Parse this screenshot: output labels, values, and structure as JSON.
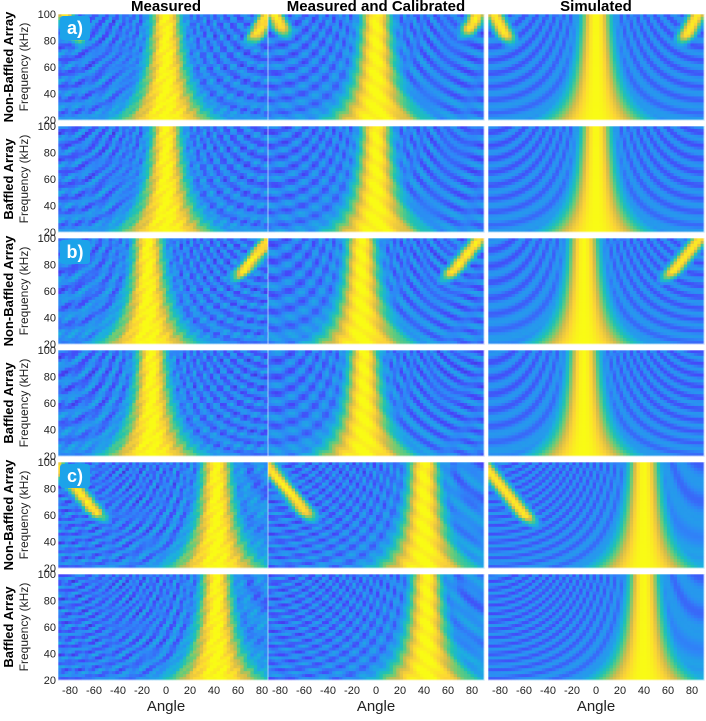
{
  "column_titles": [
    "Measured",
    "Measured and Calibrated",
    "Simulated"
  ],
  "group_labels": [
    "a)",
    "b)",
    "c)"
  ],
  "row_labels": [
    "Non-Baffled Array",
    "Baffled Array",
    "Non-Baffled Array",
    "Baffled Array",
    "Non-Baffled Array",
    "Baffled Array"
  ],
  "ylabel": "Frequency (kHz)",
  "xlabel": "Angle",
  "yticks": [
    100,
    80,
    60,
    40,
    20
  ],
  "xticks": [
    -80,
    -60,
    -40,
    -20,
    0,
    20,
    40,
    60,
    80
  ],
  "colors": {
    "colormap": [
      "#3e26a8",
      "#4743f9",
      "#2e87f7",
      "#1cafdf",
      "#21c3af",
      "#6ecc74",
      "#d3bb4c",
      "#fcd436",
      "#f9fb15"
    ],
    "label_background": "#1ca3ea"
  },
  "chart_data": {
    "type": "heatmap",
    "title": "",
    "xlabel": "Angle",
    "ylabel": "Frequency (kHz)",
    "xlim": [
      -90,
      90
    ],
    "ylim": [
      20,
      100
    ],
    "grid": false,
    "panels": [
      {
        "group": "a)",
        "array": "Non-Baffled Array",
        "column": "Measured",
        "main_lobe_angle_deg": 0,
        "grating_lobe_angle_deg": null,
        "grating_lobe_min_freq_khz": 80
      },
      {
        "group": "a)",
        "array": "Non-Baffled Array",
        "column": "Measured and Calibrated",
        "main_lobe_angle_deg": 0,
        "grating_lobe_angle_deg": null,
        "grating_lobe_min_freq_khz": 85
      },
      {
        "group": "a)",
        "array": "Non-Baffled Array",
        "column": "Simulated",
        "main_lobe_angle_deg": 0,
        "grating_lobe_angle_deg": null,
        "grating_lobe_min_freq_khz": 80
      },
      {
        "group": "a)",
        "array": "Baffled Array",
        "column": "Measured",
        "main_lobe_angle_deg": 0,
        "grating_lobe_angle_deg": null,
        "grating_lobe_min_freq_khz": null
      },
      {
        "group": "a)",
        "array": "Baffled Array",
        "column": "Measured and Calibrated",
        "main_lobe_angle_deg": 0,
        "grating_lobe_angle_deg": null,
        "grating_lobe_min_freq_khz": null
      },
      {
        "group": "a)",
        "array": "Baffled Array",
        "column": "Simulated",
        "main_lobe_angle_deg": 0,
        "grating_lobe_angle_deg": null,
        "grating_lobe_min_freq_khz": null
      },
      {
        "group": "b)",
        "array": "Non-Baffled Array",
        "column": "Measured",
        "main_lobe_angle_deg": -15,
        "grating_lobe_angle_deg": 60,
        "grating_lobe_min_freq_khz": 70
      },
      {
        "group": "b)",
        "array": "Non-Baffled Array",
        "column": "Measured and Calibrated",
        "main_lobe_angle_deg": -12,
        "grating_lobe_angle_deg": 60,
        "grating_lobe_min_freq_khz": 70
      },
      {
        "group": "b)",
        "array": "Non-Baffled Array",
        "column": "Simulated",
        "main_lobe_angle_deg": -10,
        "grating_lobe_angle_deg": 60,
        "grating_lobe_min_freq_khz": 70
      },
      {
        "group": "b)",
        "array": "Baffled Array",
        "column": "Measured",
        "main_lobe_angle_deg": -12,
        "grating_lobe_angle_deg": null,
        "grating_lobe_min_freq_khz": null
      },
      {
        "group": "b)",
        "array": "Baffled Array",
        "column": "Measured and Calibrated",
        "main_lobe_angle_deg": -10,
        "grating_lobe_angle_deg": null,
        "grating_lobe_min_freq_khz": null
      },
      {
        "group": "b)",
        "array": "Baffled Array",
        "column": "Simulated",
        "main_lobe_angle_deg": -10,
        "grating_lobe_angle_deg": null,
        "grating_lobe_min_freq_khz": null
      },
      {
        "group": "c)",
        "array": "Non-Baffled Array",
        "column": "Measured",
        "main_lobe_angle_deg": 42,
        "grating_lobe_angle_deg": -55,
        "grating_lobe_min_freq_khz": 58
      },
      {
        "group": "c)",
        "array": "Non-Baffled Array",
        "column": "Measured and Calibrated",
        "main_lobe_angle_deg": 40,
        "grating_lobe_angle_deg": -55,
        "grating_lobe_min_freq_khz": 58
      },
      {
        "group": "c)",
        "array": "Non-Baffled Array",
        "column": "Simulated",
        "main_lobe_angle_deg": 40,
        "grating_lobe_angle_deg": -55,
        "grating_lobe_min_freq_khz": 55
      },
      {
        "group": "c)",
        "array": "Baffled Array",
        "column": "Measured",
        "main_lobe_angle_deg": 42,
        "grating_lobe_angle_deg": null,
        "grating_lobe_min_freq_khz": null
      },
      {
        "group": "c)",
        "array": "Baffled Array",
        "column": "Measured and Calibrated",
        "main_lobe_angle_deg": 42,
        "grating_lobe_angle_deg": null,
        "grating_lobe_min_freq_khz": null
      },
      {
        "group": "c)",
        "array": "Baffled Array",
        "column": "Simulated",
        "main_lobe_angle_deg": 40,
        "grating_lobe_angle_deg": null,
        "grating_lobe_min_freq_khz": null
      }
    ]
  }
}
